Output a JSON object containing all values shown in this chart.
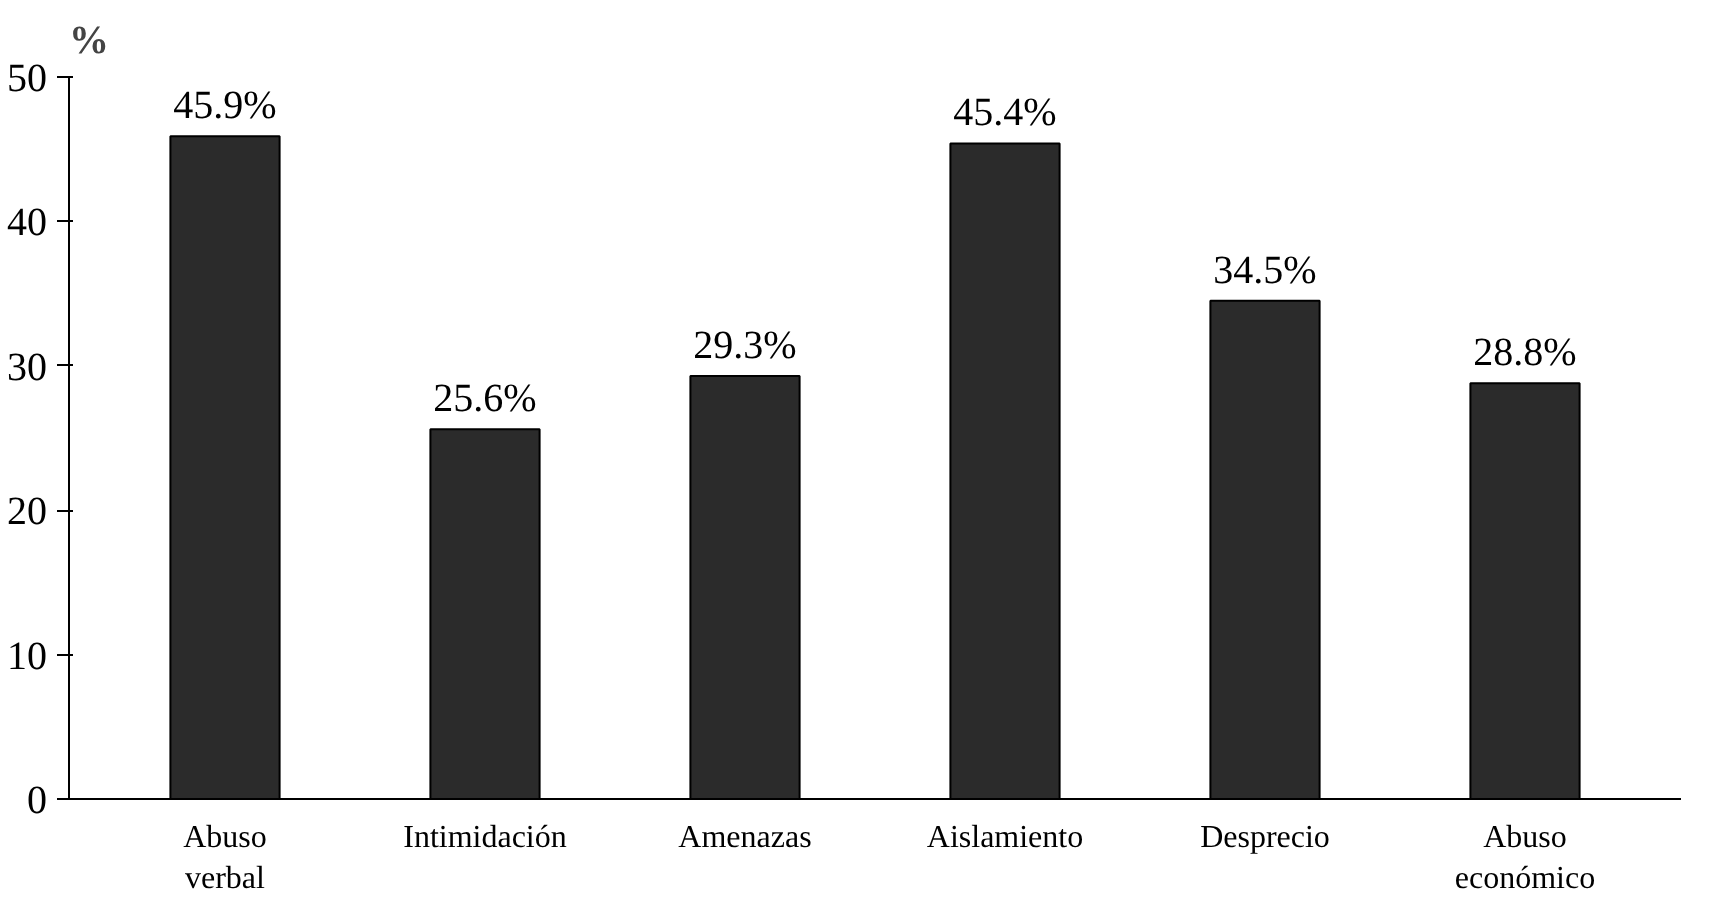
{
  "chart_data": {
    "type": "bar",
    "ylabel": "%",
    "categories": [
      "Abuso\nverbal",
      "Intimidación",
      "Amenazas",
      "Aislamiento",
      "Desprecio",
      "Abuso\neconómico"
    ],
    "values": [
      45.9,
      25.6,
      29.3,
      45.4,
      34.5,
      28.8
    ],
    "value_labels": [
      "45.9%",
      "25.6%",
      "29.3%",
      "45.4%",
      "34.5%",
      "28.8%"
    ],
    "color": "#2b2b2b",
    "ylim": [
      0,
      50
    ],
    "yticks": [
      0,
      10,
      20,
      30,
      40,
      50
    ],
    "grid": false
  }
}
